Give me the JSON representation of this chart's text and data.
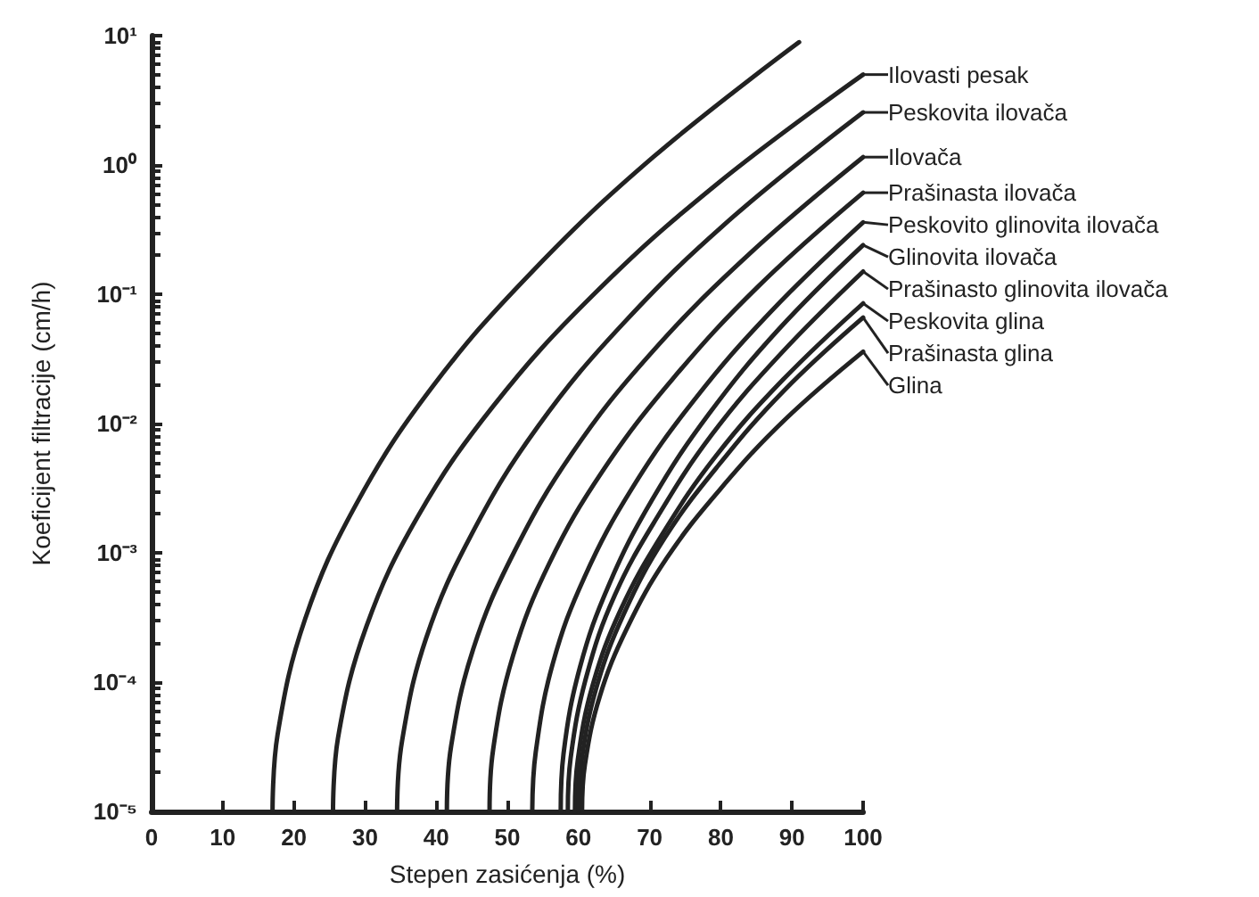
{
  "chart_data": {
    "type": "line",
    "xlabel": "Stepen zasićenja (%)",
    "ylabel": "Koeficijent filtracije (cm/h)",
    "xlim": [
      0,
      100
    ],
    "xticks": [
      0,
      10,
      20,
      30,
      40,
      50,
      60,
      70,
      80,
      90,
      100
    ],
    "ylim": [
      1e-05,
      10
    ],
    "yticks": [
      {
        "value": 1e-05,
        "label": "10⁻⁵"
      },
      {
        "value": 0.0001,
        "label": "10⁻⁴"
      },
      {
        "value": 0.001,
        "label": "10⁻³"
      },
      {
        "value": 0.01,
        "label": "10⁻²"
      },
      {
        "value": 0.1,
        "label": "10⁻¹"
      },
      {
        "value": 1,
        "label": "10⁰"
      },
      {
        "value": 10,
        "label": "10¹"
      }
    ],
    "log": "y",
    "grid": false,
    "legend": "right",
    "marker": "none",
    "line_style": "solid",
    "series": [
      {
        "color": "#222222",
        "x": [
          17,
          17.7,
          21.6,
          28.8,
          39.4,
          53.3,
          70.5,
          91
        ],
        "values": [
          1e-05,
          3.9e-05,
          0.00031,
          0.0024,
          0.019,
          0.146,
          1.15,
          8.9
        ]
      },
      {
        "name": "Ilovasti pesak",
        "color": "#222222",
        "x": [
          25.5,
          26.2,
          30.2,
          37.4,
          48,
          62,
          79.3,
          100
        ],
        "values": [
          1e-05,
          3.7e-05,
          0.00027,
          0.0019,
          0.0136,
          0.098,
          0.7,
          5
        ]
      },
      {
        "name": "Peskovita ilovača",
        "color": "#222222",
        "x": [
          34.5,
          35.2,
          38.6,
          45,
          54.3,
          66.6,
          81.8,
          100
        ],
        "values": [
          1e-05,
          3.5e-05,
          0.00022,
          0.0014,
          0.0095,
          0.062,
          0.4,
          2.55
        ]
      },
      {
        "name": "Ilovača",
        "color": "#222222",
        "x": [
          41.5,
          42.1,
          45.2,
          50.9,
          59.2,
          70.2,
          83.8,
          100
        ],
        "values": [
          1e-05,
          3.2e-05,
          0.00018,
          0.001,
          0.006,
          0.035,
          0.2,
          1.15
        ]
      },
      {
        "name": "Prašinasta ilovača",
        "color": "#222222",
        "x": [
          47.5,
          48,
          50.8,
          55.9,
          63.4,
          73.2,
          85.4,
          100
        ],
        "values": [
          1e-05,
          3e-05,
          0.00016,
          0.00083,
          0.0043,
          0.022,
          0.117,
          0.61
        ]
      },
      {
        "name": "Peskovito glinovita ilovača",
        "color": "#222222",
        "x": [
          53.5,
          54,
          56.4,
          60.9,
          67.6,
          76.3,
          87.1,
          100
        ],
        "values": [
          1e-05,
          2.9e-05,
          0.00014,
          0.00066,
          0.0032,
          0.0153,
          0.074,
          0.36
        ]
      },
      {
        "name": "Glinovita ilovača",
        "color": "#222222",
        "x": [
          57.5,
          57.9,
          60.2,
          64.3,
          70.4,
          78.3,
          88.2,
          100
        ],
        "values": [
          1e-05,
          2.8e-05,
          0.00013,
          0.00057,
          0.0026,
          0.0118,
          0.054,
          0.24
        ]
      },
      {
        "name": "Prašinasto glinovita ilovača",
        "color": "#222222",
        "x": [
          58.5,
          58.9,
          61.1,
          65.1,
          71.1,
          78.8,
          88.5,
          100
        ],
        "values": [
          1e-05,
          2.6e-05,
          0.00011,
          0.00047,
          0.0019,
          0.0083,
          0.035,
          0.15
        ]
      },
      {
        "name": "Peskovita glina",
        "color": "#222222",
        "x": [
          59.5,
          59.9,
          62,
          66,
          71.8,
          79.3,
          88.8,
          100
        ],
        "values": [
          1e-05,
          2.5e-05,
          9.5e-05,
          0.00037,
          0.0014,
          0.0056,
          0.022,
          0.085
        ]
      },
      {
        "name": "Prašinasta glina",
        "color": "#222222",
        "x": [
          60,
          60.4,
          62.5,
          66.4,
          72.1,
          79.6,
          88.9,
          100
        ],
        "values": [
          1e-05,
          2.4e-05,
          9e-05,
          0.00034,
          0.0013,
          0.0047,
          0.018,
          0.066
        ]
      },
      {
        "name": "Glina",
        "color": "#222222",
        "x": [
          60.5,
          60.9,
          63,
          66.8,
          72.4,
          79.9,
          89,
          100
        ],
        "values": [
          1e-05,
          2.3e-05,
          7.8e-05,
          0.00026,
          0.00091,
          0.0031,
          0.0107,
          0.036
        ]
      }
    ]
  }
}
